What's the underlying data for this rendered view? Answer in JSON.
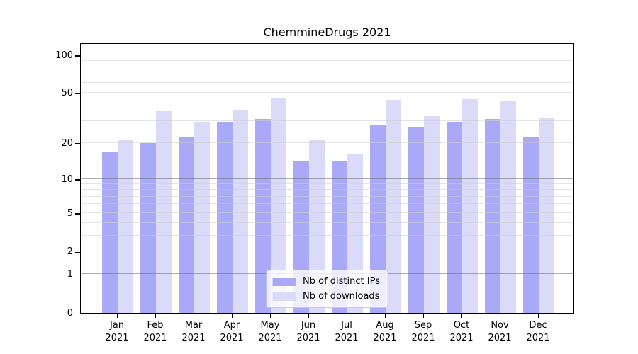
{
  "title": "ChemmineDrugs 2021",
  "chart_data": {
    "type": "bar",
    "title": "ChemmineDrugs 2021",
    "categories": [
      "Jan 2021",
      "Feb 2021",
      "Mar 2021",
      "Apr 2021",
      "May 2021",
      "Jun 2021",
      "Jul 2021",
      "Aug 2021",
      "Sep 2021",
      "Oct 2021",
      "Nov 2021",
      "Dec 2021"
    ],
    "series": [
      {
        "name": "Nb of distinct IPs",
        "color": "#a9a9f7",
        "values": [
          17,
          20,
          22,
          29,
          31,
          14,
          14,
          28,
          27,
          29,
          31,
          22
        ]
      },
      {
        "name": "Nb of downloads",
        "color": "#dadaf9",
        "values": [
          21,
          36,
          29,
          37,
          46,
          21,
          16,
          44,
          33,
          45,
          43,
          32
        ]
      }
    ],
    "xlabel": "",
    "ylabel": "",
    "yscale": "log1p",
    "ylim": [
      0,
      125
    ],
    "yticks": [
      0,
      1,
      2,
      5,
      10,
      20,
      50,
      100
    ],
    "minor_gridlines": [
      3,
      4,
      6,
      7,
      8,
      9,
      30,
      40,
      60,
      70,
      80,
      90
    ],
    "decade_gridlines": [
      1,
      10,
      100
    ],
    "grid": true,
    "grid_on_top": true,
    "legend_position": "lower center"
  },
  "legend": {
    "items": [
      "Nb of distinct IPs",
      "Nb of downloads"
    ]
  },
  "colors": {
    "background": "#ffffff",
    "spine": "#000000",
    "series_1": "#a9a9f7",
    "series_2": "#dadaf9",
    "grid_decade": "rgba(110,110,110,0.55)",
    "grid_minor": "rgba(205,205,205,0.55)",
    "legend_bg": "rgba(255,255,255,0.8)",
    "legend_border": "#cccccc",
    "tick_label": "#000000"
  }
}
